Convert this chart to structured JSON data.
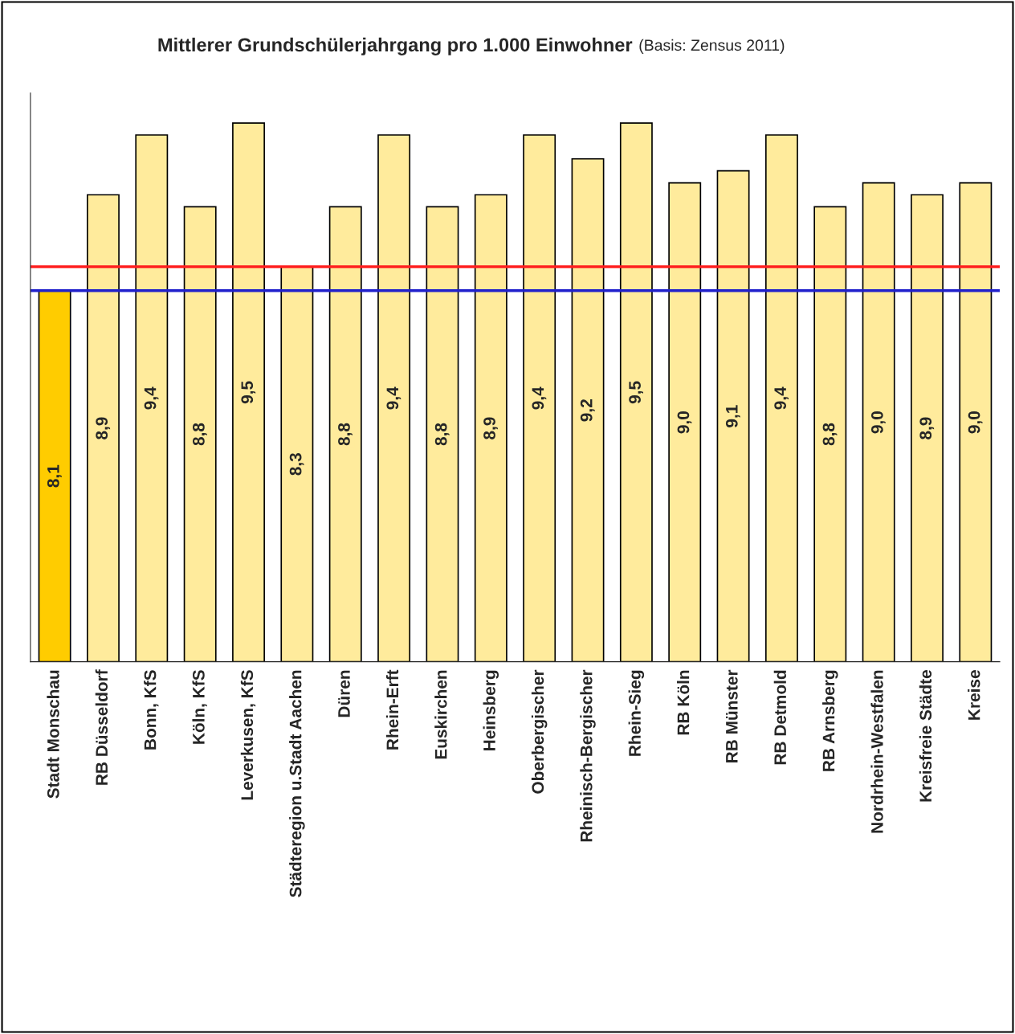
{
  "chart_data": {
    "type": "bar",
    "title": "Mittlerer Grundschülerjahrgang pro 1.000 Einwohner",
    "subtitle": "(Basis: Zensus 2011)",
    "categories": [
      "Stadt Monschau",
      "RB Düsseldorf",
      "Bonn, KfS",
      "Köln, KfS",
      "Leverkusen, KfS",
      "Städteregion u.Stadt Aachen",
      "Düren",
      "Rhein-Erft",
      "Euskirchen",
      "Heinsberg",
      "Oberbergischer",
      "Rheinisch-Bergischer",
      "Rhein-Sieg",
      "RB Köln",
      "RB Münster",
      "RB Detmold",
      "RB Arnsberg",
      "Nordrhein-Westfalen",
      "Kreisfreie Städte",
      "Kreise"
    ],
    "values": [
      8.1,
      8.9,
      9.4,
      8.8,
      9.5,
      8.3,
      8.8,
      9.4,
      8.8,
      8.9,
      9.4,
      9.2,
      9.5,
      9.0,
      9.1,
      9.4,
      8.8,
      9.0,
      8.9,
      9.0
    ],
    "value_labels": [
      "8,1",
      "8,9",
      "9,4",
      "8,8",
      "9,5",
      "8,3",
      "8,8",
      "9,4",
      "8,8",
      "8,9",
      "9,4",
      "9,2",
      "9,5",
      "9,0",
      "9,1",
      "9,4",
      "8,8",
      "9,0",
      "8,9",
      "9,0"
    ],
    "colors": [
      "#ffcc00",
      "#ffeb9c",
      "#ffeb9c",
      "#ffeb9c",
      "#ffeb9c",
      "#ffeb9c",
      "#ffeb9c",
      "#ffeb9c",
      "#ffeb9c",
      "#ffeb9c",
      "#ffeb9c",
      "#ffeb9c",
      "#ffeb9c",
      "#ffeb9c",
      "#ffeb9c",
      "#ffeb9c",
      "#ffeb9c",
      "#ffeb9c",
      "#ffeb9c",
      "#ffeb9c"
    ],
    "ylim": [
      5,
      9.75
    ],
    "ref_lines": [
      {
        "axis": "y",
        "value": 8.3,
        "color": "#ff2020"
      },
      {
        "axis": "y",
        "value": 8.1,
        "color": "#2020cc"
      }
    ],
    "tick_labels": "x",
    "grid": false,
    "legend": false
  }
}
